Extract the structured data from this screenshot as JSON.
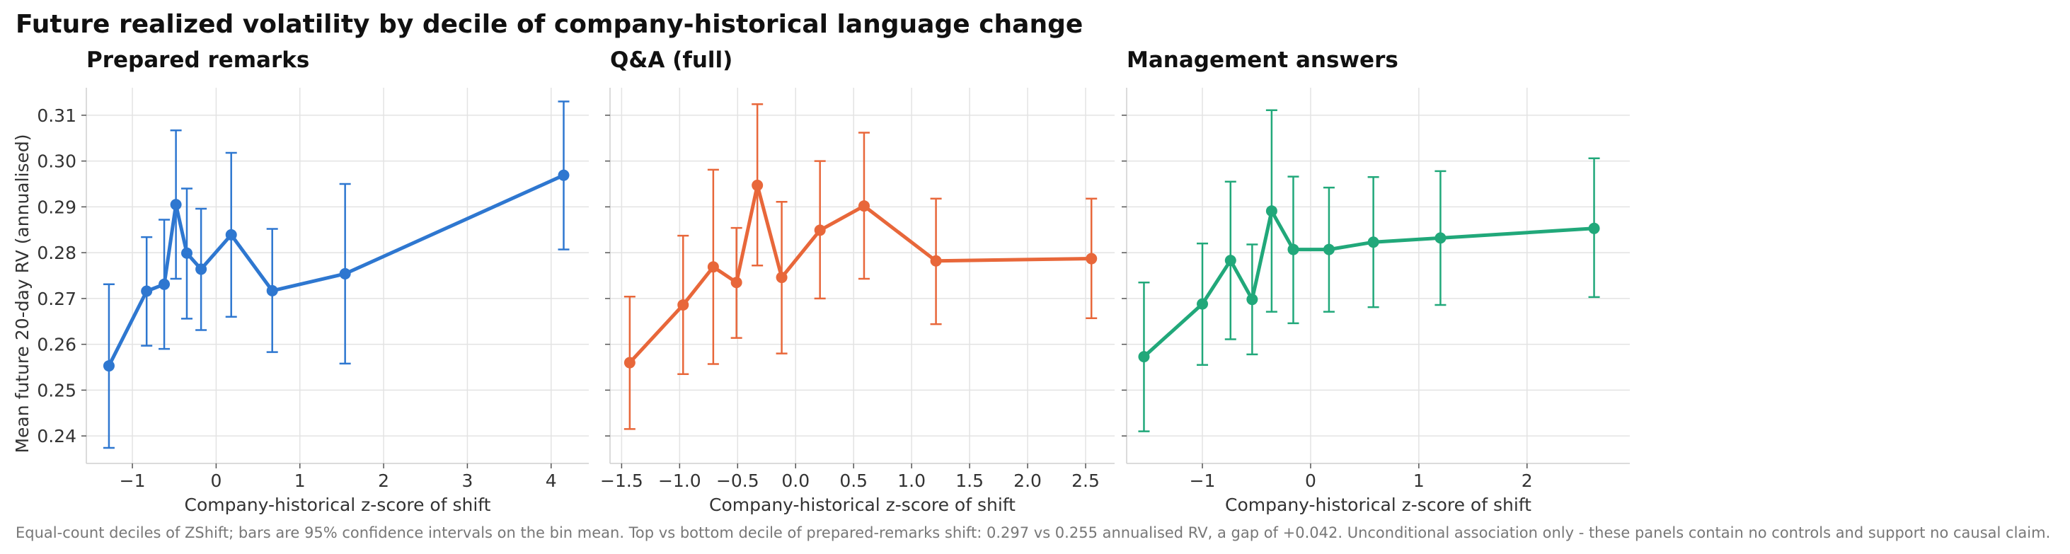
{
  "title": "Future realized volatility by decile of company-historical language change",
  "caption": "Equal-count deciles of ZShift; bars are 95% confidence intervals on the bin mean. Top vs bottom decile of prepared-remarks shift: 0.297 vs 0.255 annualised RV, a gap of +0.042. Unconditional association only - these panels contain no controls and support no causal claim.",
  "ylabel": "Mean future 20-day RV (annualised)",
  "chart_data": [
    {
      "type": "line",
      "title": "Prepared remarks",
      "xlabel": "Company-historical z-score of shift",
      "color": "#2E77D0",
      "xlim": [
        -1.55,
        4.45
      ],
      "ylim": [
        0.234,
        0.316
      ],
      "xticks": [
        -1,
        0,
        1,
        2,
        3,
        4
      ],
      "xtick_labels": [
        "−1",
        "0",
        "1",
        "2",
        "3",
        "4"
      ],
      "yticks": [
        0.24,
        0.25,
        0.26,
        0.27,
        0.28,
        0.29,
        0.3,
        0.31
      ],
      "ytick_labels": [
        "0.24",
        "0.25",
        "0.26",
        "0.27",
        "0.28",
        "0.29",
        "0.30",
        "0.31"
      ],
      "grid": true,
      "x": [
        -1.28,
        -0.83,
        -0.62,
        -0.48,
        -0.35,
        -0.18,
        0.18,
        0.67,
        1.54,
        4.15
      ],
      "y": [
        0.2553,
        0.2716,
        0.2731,
        0.2905,
        0.2799,
        0.2764,
        0.2839,
        0.2717,
        0.2754,
        0.2969
      ],
      "y_lo": [
        0.2374,
        0.2597,
        0.259,
        0.2743,
        0.2656,
        0.2631,
        0.266,
        0.2583,
        0.2558,
        0.2807
      ],
      "y_hi": [
        0.2731,
        0.2834,
        0.2872,
        0.3067,
        0.294,
        0.2896,
        0.3018,
        0.2852,
        0.295,
        0.313
      ]
    },
    {
      "type": "line",
      "title": "Q&A (full)",
      "xlabel": "Company-historical z-score of shift",
      "color": "#E8673A",
      "xlim": [
        -1.6,
        2.75
      ],
      "ylim": [
        0.234,
        0.316
      ],
      "xticks": [
        -1.5,
        -1.0,
        -0.5,
        0.0,
        0.5,
        1.0,
        1.5,
        2.0,
        2.5
      ],
      "xtick_labels": [
        "−1.5",
        "−1.0",
        "−0.5",
        "0.0",
        "0.5",
        "1.0",
        "1.5",
        "2.0",
        "2.5"
      ],
      "yticks": [
        0.24,
        0.25,
        0.26,
        0.27,
        0.28,
        0.29,
        0.3,
        0.31
      ],
      "grid": true,
      "x": [
        -1.43,
        -0.97,
        -0.71,
        -0.51,
        -0.33,
        -0.12,
        0.21,
        0.59,
        1.21,
        2.55
      ],
      "y": [
        0.256,
        0.2686,
        0.2769,
        0.2735,
        0.2947,
        0.2746,
        0.2849,
        0.2902,
        0.2782,
        0.2787
      ],
      "y_lo": [
        0.2415,
        0.2535,
        0.2557,
        0.2614,
        0.2772,
        0.258,
        0.27,
        0.2743,
        0.2644,
        0.2657
      ],
      "y_hi": [
        0.2704,
        0.2837,
        0.2981,
        0.2854,
        0.3124,
        0.2911,
        0.3,
        0.3062,
        0.2918,
        0.2918
      ]
    },
    {
      "type": "line",
      "title": "Management answers",
      "xlabel": "Company-historical z-score of shift",
      "color": "#21A87A",
      "xlim": [
        -1.7,
        2.95
      ],
      "ylim": [
        0.234,
        0.316
      ],
      "xticks": [
        -1,
        0,
        1,
        2
      ],
      "xtick_labels": [
        "−1",
        "0",
        "1",
        "2"
      ],
      "yticks": [
        0.24,
        0.25,
        0.26,
        0.27,
        0.28,
        0.29,
        0.3,
        0.31
      ],
      "grid": true,
      "x": [
        -1.54,
        -1.0,
        -0.74,
        -0.54,
        -0.36,
        -0.16,
        0.17,
        0.58,
        1.2,
        2.62
      ],
      "y": [
        0.2573,
        0.2688,
        0.2783,
        0.2698,
        0.2891,
        0.2807,
        0.2807,
        0.2823,
        0.2832,
        0.2853
      ],
      "y_lo": [
        0.241,
        0.2555,
        0.2611,
        0.2578,
        0.2671,
        0.2646,
        0.2671,
        0.2681,
        0.2686,
        0.2703
      ],
      "y_hi": [
        0.2735,
        0.282,
        0.2955,
        0.2818,
        0.3111,
        0.2966,
        0.2942,
        0.2965,
        0.2978,
        0.3006
      ]
    }
  ]
}
